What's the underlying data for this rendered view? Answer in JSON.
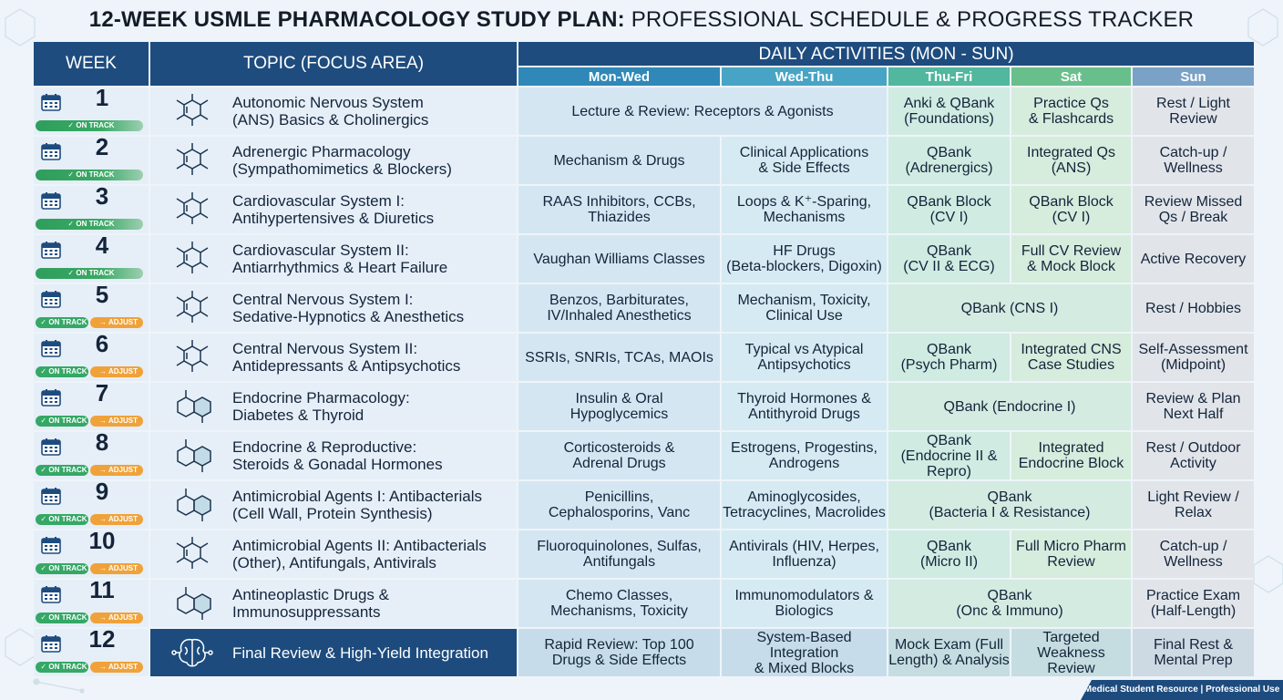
{
  "title": {
    "bold": "12-WEEK USMLE PHARMACOLOGY STUDY PLAN:",
    "rest": " PROFESSIONAL SCHEDULE & PROGRESS TRACKER"
  },
  "headers": {
    "week": "WEEK",
    "topic": "TOPIC (FOCUS AREA)",
    "daily": "DAILY ACTIVITIES (MON - SUN)",
    "sub": [
      "Mon-Wed",
      "Wed-Thu",
      "Thu-Fri",
      "Sat",
      "Sun"
    ]
  },
  "badge_labels": {
    "on_track": "✓ ON TRACK",
    "adjust": "→ ADJUST"
  },
  "colors": {
    "header": "#1e4c7e",
    "on_track": "#35a866",
    "adjust": "#f0a23a"
  },
  "weeks": [
    {
      "num": "1",
      "status": "on_track",
      "icon": "molecule-icon",
      "topic": [
        "Autonomic Nervous System",
        "(ANS) Basics & Cholinergics"
      ],
      "cells": [
        {
          "text": [
            "Lecture & Review: Receptors & Agonists"
          ],
          "span": 2
        },
        {
          "text": [
            "Anki & QBank",
            "(Foundations)"
          ]
        },
        {
          "text": [
            "Practice Qs",
            "& Flashcards"
          ]
        },
        {
          "text": [
            "Rest / Light",
            "Review"
          ]
        }
      ]
    },
    {
      "num": "2",
      "status": "on_track",
      "icon": "molecule-icon",
      "topic": [
        "Adrenergic Pharmacology",
        "(Sympathomimetics & Blockers)"
      ],
      "cells": [
        {
          "text": [
            "Mechanism & Drugs"
          ]
        },
        {
          "text": [
            "Clinical Applications",
            "& Side Effects"
          ]
        },
        {
          "text": [
            "QBank",
            "(Adrenergics)"
          ]
        },
        {
          "text": [
            "Integrated Qs",
            "(ANS)"
          ]
        },
        {
          "text": [
            "Catch-up /",
            "Wellness"
          ]
        }
      ]
    },
    {
      "num": "3",
      "status": "on_track",
      "icon": "molecule-icon",
      "topic": [
        "Cardiovascular System I:",
        "Antihypertensives & Diuretics"
      ],
      "cells": [
        {
          "text": [
            "RAAS Inhibitors, CCBs,",
            "Thiazides"
          ]
        },
        {
          "text": [
            "Loops & K⁺-Sparing,",
            "Mechanisms"
          ]
        },
        {
          "text": [
            "QBank Block",
            "(CV I)"
          ]
        },
        {
          "text": [
            "QBank Block",
            "(CV I)"
          ]
        },
        {
          "text": [
            "Review Missed",
            "Qs / Break"
          ]
        }
      ]
    },
    {
      "num": "4",
      "status": "on_track",
      "icon": "molecule-icon",
      "topic": [
        "Cardiovascular System II:",
        "Antiarrhythmics & Heart Failure"
      ],
      "cells": [
        {
          "text": [
            "Vaughan Williams Classes"
          ]
        },
        {
          "text": [
            "HF Drugs",
            "(Beta-blockers, Digoxin)"
          ]
        },
        {
          "text": [
            "QBank",
            "(CV II & ECG)"
          ]
        },
        {
          "text": [
            "Full CV Review",
            "& Mock Block"
          ]
        },
        {
          "text": [
            "Active Recovery"
          ]
        }
      ]
    },
    {
      "num": "5",
      "status": "adjust",
      "icon": "molecule-icon",
      "topic": [
        "Central Nervous System I:",
        "Sedative-Hypnotics & Anesthetics"
      ],
      "cells": [
        {
          "text": [
            "Benzos, Barbiturates,",
            "IV/Inhaled Anesthetics"
          ]
        },
        {
          "text": [
            "Mechanism, Toxicity,",
            "Clinical Use"
          ]
        },
        {
          "text": [
            "QBank (CNS I)"
          ],
          "span": 2
        },
        {
          "text": [
            "Rest / Hobbies"
          ]
        }
      ]
    },
    {
      "num": "6",
      "status": "adjust",
      "icon": "molecule-icon",
      "topic": [
        "Central Nervous System II:",
        "Antidepressants & Antipsychotics"
      ],
      "cells": [
        {
          "text": [
            "SSRIs, SNRIs, TCAs, MAOIs"
          ]
        },
        {
          "text": [
            "Typical vs Atypical",
            "Antipsychotics"
          ]
        },
        {
          "text": [
            "QBank",
            "(Psych Pharm)"
          ]
        },
        {
          "text": [
            "Integrated CNS",
            "Case Studies"
          ]
        },
        {
          "text": [
            "Self-Assessment",
            "(Midpoint)"
          ]
        }
      ]
    },
    {
      "num": "7",
      "status": "adjust",
      "icon": "ring-icon",
      "topic": [
        "Endocrine Pharmacology:",
        "Diabetes & Thyroid"
      ],
      "cells": [
        {
          "text": [
            "Insulin & Oral",
            "Hypoglycemics"
          ]
        },
        {
          "text": [
            "Thyroid Hormones &",
            "Antithyroid Drugs"
          ]
        },
        {
          "text": [
            "QBank (Endocrine I)"
          ],
          "span": 2
        },
        {
          "text": [
            "Review & Plan",
            "Next Half"
          ]
        }
      ]
    },
    {
      "num": "8",
      "status": "adjust",
      "icon": "ring-icon",
      "topic": [
        "Endocrine & Reproductive:",
        "Steroids & Gonadal Hormones"
      ],
      "cells": [
        {
          "text": [
            "Corticosteroids &",
            "Adrenal Drugs"
          ]
        },
        {
          "text": [
            "Estrogens, Progestins,",
            "Androgens"
          ]
        },
        {
          "text": [
            "QBank",
            "(Endocrine II &",
            "Repro)"
          ]
        },
        {
          "text": [
            "Integrated",
            "Endocrine Block"
          ]
        },
        {
          "text": [
            "Rest / Outdoor",
            "Activity"
          ]
        }
      ]
    },
    {
      "num": "9",
      "status": "adjust",
      "icon": "ring-icon",
      "topic": [
        "Antimicrobial Agents I: Antibacterials",
        "(Cell Wall, Protein Synthesis)"
      ],
      "cells": [
        {
          "text": [
            "Penicillins,",
            "Cephalosporins, Vanc"
          ]
        },
        {
          "text": [
            "Aminoglycosides,",
            "Tetracyclines, Macrolides"
          ]
        },
        {
          "text": [
            "QBank",
            "(Bacteria I & Resistance)"
          ],
          "span": 2
        },
        {
          "text": [
            "Light Review /",
            "Relax"
          ]
        }
      ]
    },
    {
      "num": "10",
      "status": "adjust",
      "icon": "molecule-icon",
      "topic": [
        "Antimicrobial Agents II: Antibacterials",
        "(Other), Antifungals, Antivirals"
      ],
      "cells": [
        {
          "text": [
            "Fluoroquinolones, Sulfas,",
            "Antifungals"
          ]
        },
        {
          "text": [
            "Antivirals (HIV, Herpes,",
            "Influenza)"
          ]
        },
        {
          "text": [
            "QBank",
            "(Micro II)"
          ]
        },
        {
          "text": [
            "Full Micro Pharm",
            "Review"
          ]
        },
        {
          "text": [
            "Catch-up /",
            "Wellness"
          ]
        }
      ]
    },
    {
      "num": "11",
      "status": "adjust",
      "icon": "ring-icon",
      "topic": [
        "Antineoplastic Drugs &",
        "Immunosuppressants"
      ],
      "cells": [
        {
          "text": [
            "Chemo Classes,",
            "Mechanisms, Toxicity"
          ]
        },
        {
          "text": [
            "Immunomodulators &",
            "Biologics"
          ]
        },
        {
          "text": [
            "QBank",
            "(Onc & Immuno)"
          ],
          "span": 2
        },
        {
          "text": [
            "Practice Exam",
            "(Half-Length)"
          ]
        }
      ]
    },
    {
      "num": "12",
      "status": "adjust",
      "icon": "brain-network-icon",
      "final": true,
      "topic": [
        "Final Review & High-Yield Integration"
      ],
      "cells": [
        {
          "text": [
            "Rapid Review: Top 100",
            "Drugs & Side Effects"
          ]
        },
        {
          "text": [
            "System-Based Integration",
            "& Mixed Blocks"
          ]
        },
        {
          "text": [
            "Mock Exam (Full",
            "Length) & Analysis"
          ]
        },
        {
          "text": [
            "Targeted",
            "Weakness Review"
          ]
        },
        {
          "text": [
            "Final Rest &",
            "Mental Prep"
          ]
        }
      ]
    }
  ],
  "footer": "Medical Student Resource | Professional Use"
}
